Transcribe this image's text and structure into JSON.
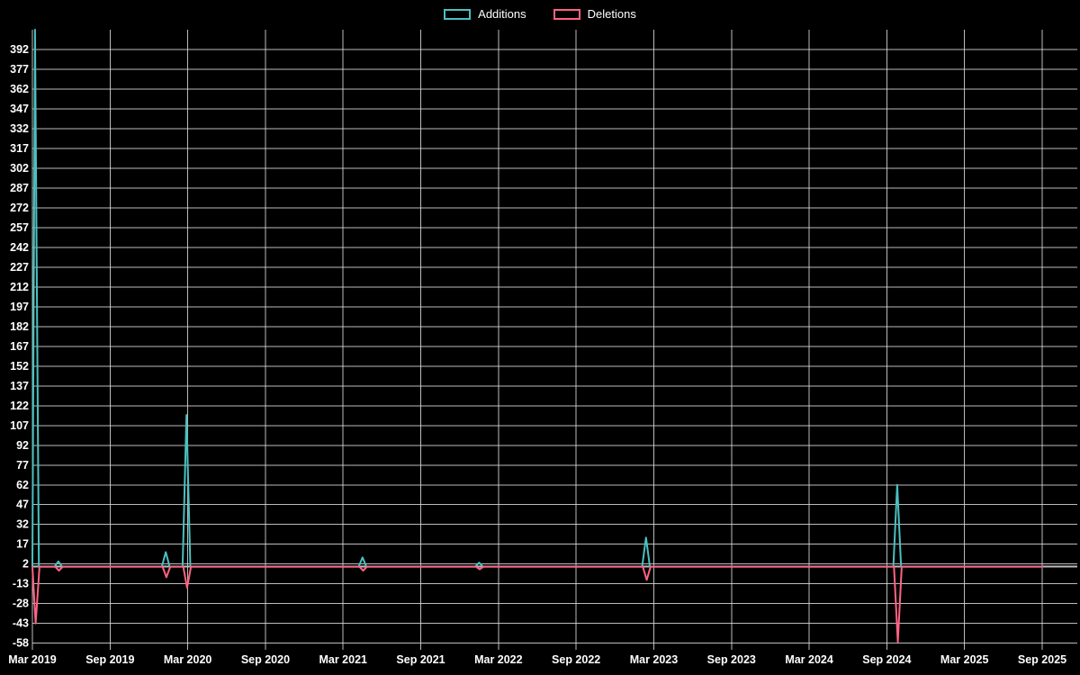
{
  "legend": [
    {
      "label": "Additions",
      "color": "#4bc0c0"
    },
    {
      "label": "Deletions",
      "color": "#ff6384"
    }
  ],
  "colors": {
    "background": "#000000",
    "grid": "#dcdcdc",
    "tick_text": "#ffffff",
    "zero_line": "#bdbdbd"
  },
  "chart_data": {
    "type": "line",
    "title": "",
    "legend_position": "top",
    "grid": true,
    "background": "#000000",
    "x_tick_labels": [
      "Mar 2019",
      "Sep 2019",
      "Mar 2020",
      "Sep 2020",
      "Mar 2021",
      "Sep 2021",
      "Mar 2022",
      "Sep 2022",
      "Mar 2023",
      "Sep 2023",
      "Mar 2024",
      "Sep 2024",
      "Mar 2025",
      "Sep 2025"
    ],
    "x_tick_months": [
      0,
      6,
      12,
      18,
      24,
      30,
      36,
      42,
      48,
      54,
      60,
      66,
      72,
      78
    ],
    "x_range_months": [
      0,
      78
    ],
    "y_ticks": [
      392,
      377,
      362,
      347,
      332,
      317,
      302,
      287,
      272,
      257,
      242,
      227,
      212,
      197,
      182,
      167,
      152,
      137,
      122,
      107,
      92,
      77,
      62,
      47,
      32,
      17,
      2,
      -13,
      -28,
      -43,
      -58
    ],
    "ylim": [
      -63,
      407
    ],
    "baseline_value": 0,
    "series": [
      {
        "name": "Additions",
        "color": "#4bc0c0",
        "baseline": 0,
        "spikes": [
          {
            "month": 0.2,
            "value": 407
          },
          {
            "month": 2.0,
            "value": 4
          },
          {
            "month": 10.3,
            "value": 11
          },
          {
            "month": 11.9,
            "value": 115
          },
          {
            "month": 25.5,
            "value": 7
          },
          {
            "month": 34.5,
            "value": 3
          },
          {
            "month": 47.4,
            "value": 22
          },
          {
            "month": 66.8,
            "value": 62
          }
        ]
      },
      {
        "name": "Deletions",
        "color": "#ff6384",
        "baseline": 0,
        "spikes": [
          {
            "month": 0.25,
            "value": -43
          },
          {
            "month": 2.05,
            "value": -3
          },
          {
            "month": 10.35,
            "value": -8
          },
          {
            "month": 11.95,
            "value": -16
          },
          {
            "month": 25.55,
            "value": -3
          },
          {
            "month": 34.55,
            "value": -2
          },
          {
            "month": 47.45,
            "value": -10
          },
          {
            "month": 66.85,
            "value": -57
          }
        ]
      }
    ]
  }
}
